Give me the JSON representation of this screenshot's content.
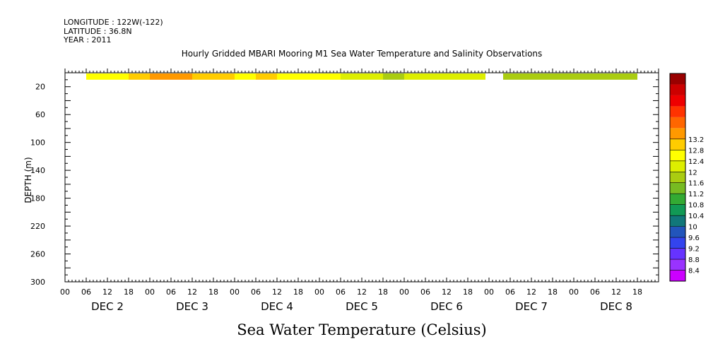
{
  "header": {
    "longitude": "LONGITUDE : 122W(-122)",
    "latitude": "LATITUDE : 36.8N",
    "year": "YEAR : 2011",
    "title": "Hourly Gridded MBARI Mooring M1 Sea Water Temperature and Salinity Observations"
  },
  "chart_data": {
    "type": "heatmap",
    "title": "Hourly Gridded MBARI Mooring M1 Sea Water Temperature and Salinity Observations",
    "xlabel": "Sea Water Temperature (Celsius)",
    "ylabel": "DEPTH (m)",
    "xlim_hours": [
      0,
      168
    ],
    "ylim": [
      300,
      0
    ],
    "y_reversed": true,
    "yticks": [
      20,
      60,
      100,
      140,
      180,
      220,
      260,
      300
    ],
    "hour_tick_labels": [
      "00",
      "06",
      "12",
      "18"
    ],
    "day_labels": [
      "DEC 2",
      "DEC 3",
      "DEC 4",
      "DEC 5",
      "DEC 6",
      "DEC 7",
      "DEC 8"
    ],
    "depth_band_m": [
      1,
      10
    ],
    "colorbar": {
      "levels": [
        8.4,
        8.8,
        9.2,
        9.6,
        10,
        10.4,
        10.8,
        11.2,
        11.6,
        12,
        12.4,
        12.8,
        13.2
      ],
      "colors": [
        "#cc00ff",
        "#9933ff",
        "#6633ff",
        "#3344ee",
        "#2255bb",
        "#11777a",
        "#119955",
        "#33aa33",
        "#77bb22",
        "#aacc11",
        "#ddee00",
        "#ffff00",
        "#ffcc00",
        "#ff9900",
        "#ff6600",
        "#ff3300",
        "#ee0000",
        "#cc0000",
        "#990000"
      ]
    },
    "series": [
      {
        "start_hour": 6,
        "end_hour": 12,
        "temp": 12.5
      },
      {
        "start_hour": 12,
        "end_hour": 18,
        "temp": 12.6
      },
      {
        "start_hour": 18,
        "end_hour": 24,
        "temp": 12.9
      },
      {
        "start_hour": 24,
        "end_hour": 36,
        "temp": 13.3
      },
      {
        "start_hour": 36,
        "end_hour": 42,
        "temp": 13.1
      },
      {
        "start_hour": 42,
        "end_hour": 48,
        "temp": 12.9
      },
      {
        "start_hour": 48,
        "end_hour": 54,
        "temp": 12.7
      },
      {
        "start_hour": 54,
        "end_hour": 60,
        "temp": 12.9
      },
      {
        "start_hour": 60,
        "end_hour": 66,
        "temp": 12.6
      },
      {
        "start_hour": 66,
        "end_hour": 72,
        "temp": 12.5
      },
      {
        "start_hour": 72,
        "end_hour": 78,
        "temp": 12.5
      },
      {
        "start_hour": 78,
        "end_hour": 84,
        "temp": 12.3
      },
      {
        "start_hour": 84,
        "end_hour": 90,
        "temp": 12.2
      },
      {
        "start_hour": 90,
        "end_hour": 96,
        "temp": 11.9
      },
      {
        "start_hour": 96,
        "end_hour": 102,
        "temp": 12.1
      },
      {
        "start_hour": 102,
        "end_hour": 108,
        "temp": 12.2
      },
      {
        "start_hour": 108,
        "end_hour": 114,
        "temp": 12.2
      },
      {
        "start_hour": 114,
        "end_hour": 119,
        "temp": 12.1
      },
      {
        "start_hour": 124,
        "end_hour": 132,
        "temp": 11.8
      },
      {
        "start_hour": 132,
        "end_hour": 144,
        "temp": 11.8
      },
      {
        "start_hour": 144,
        "end_hour": 150,
        "temp": 11.7
      },
      {
        "start_hour": 150,
        "end_hour": 162,
        "temp": 11.8
      }
    ]
  }
}
